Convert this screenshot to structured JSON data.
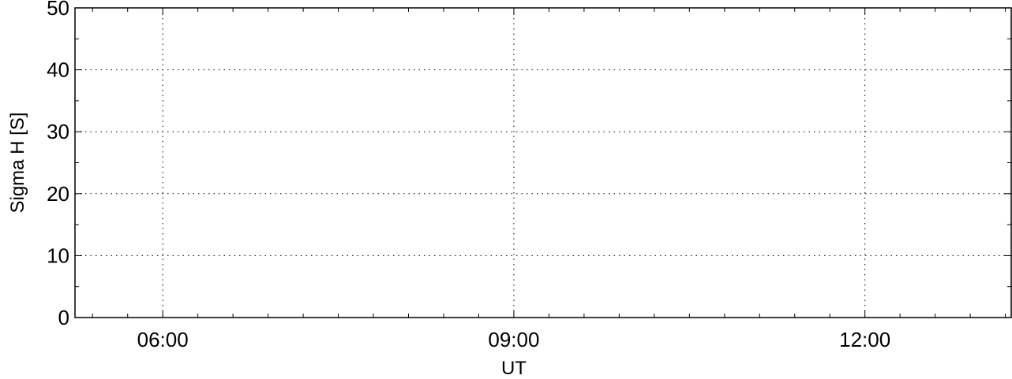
{
  "chart_data": {
    "type": "line",
    "title": "",
    "xlabel": "UT",
    "ylabel": "Sigma H [S]",
    "x_axis": {
      "type": "time",
      "range": [
        "05:15",
        "13:15"
      ],
      "major_ticks": [
        "06:00",
        "09:00",
        "12:00"
      ],
      "minor_tick_interval_minutes": 18
    },
    "y_axis": {
      "range": [
        0,
        50
      ],
      "major_ticks": [
        0,
        10,
        20,
        30,
        40,
        50
      ],
      "minor_tick_interval": 5
    },
    "grid": true,
    "grid_style": "dotted",
    "series": []
  }
}
